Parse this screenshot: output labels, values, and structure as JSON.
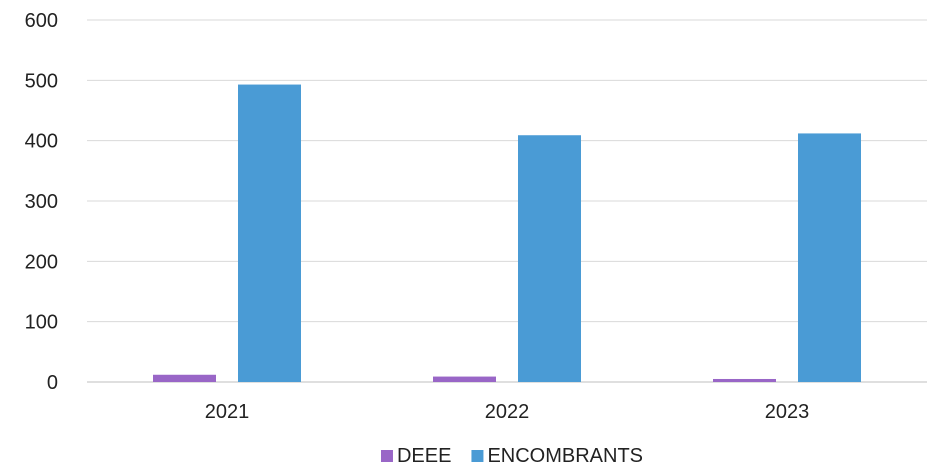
{
  "chart_data": {
    "type": "bar",
    "title": "",
    "xlabel": "",
    "ylabel": "",
    "categories": [
      "2021",
      "2022",
      "2023"
    ],
    "series": [
      {
        "name": "DEEE",
        "values": [
          12,
          9,
          5
        ],
        "color": "#9966c7"
      },
      {
        "name": "ENCOMBRANTS",
        "values": [
          493,
          409,
          412
        ],
        "color": "#4a9bd5"
      }
    ],
    "ylim": [
      0,
      600
    ],
    "yticks": [
      0,
      100,
      200,
      300,
      400,
      500,
      600
    ],
    "grid": true,
    "legend_position": "bottom"
  }
}
